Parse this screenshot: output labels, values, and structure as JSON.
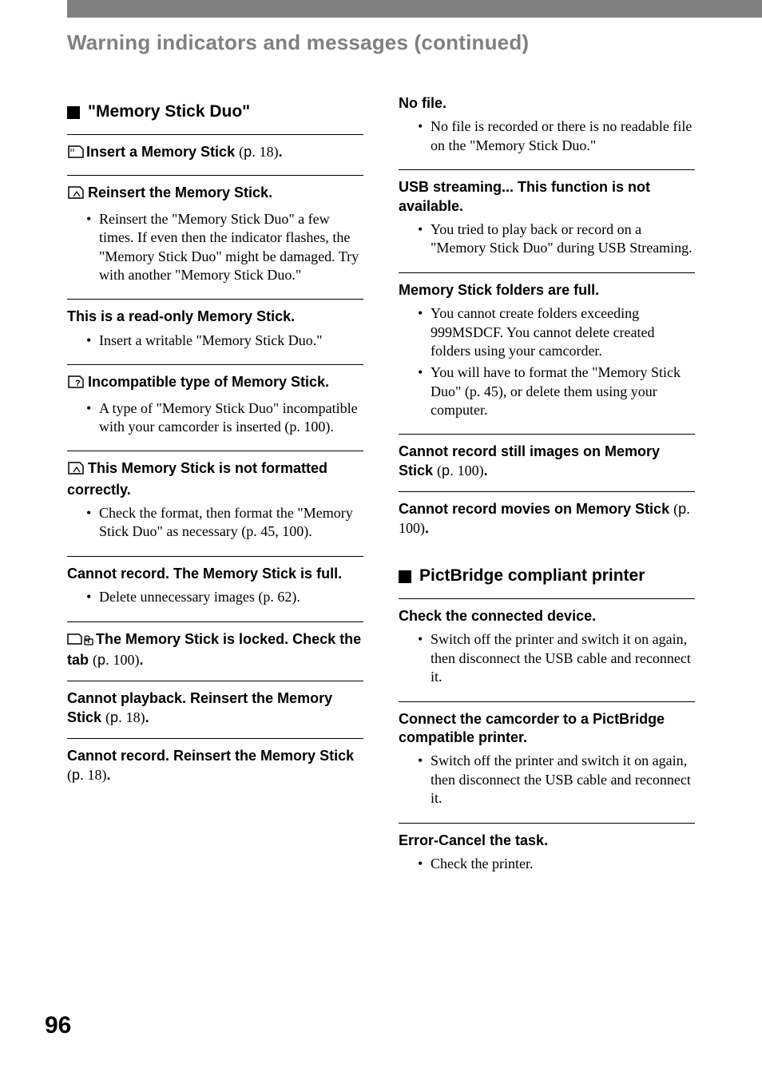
{
  "page": {
    "number": "96",
    "chapter_title": "Warning indicators and messages (continued)"
  },
  "left": {
    "section_heading": "\"Memory Stick Duo\"",
    "items": [
      {
        "icon": "memstick-outline",
        "title": "Insert a Memory Stick",
        "ref": "(p. 18)",
        "period": true,
        "bullets": []
      },
      {
        "icon": "memstick-eject",
        "title": "Reinsert the Memory Stick.",
        "bullets": [
          "Reinsert the \"Memory Stick Duo\" a few times. If even then the indicator flashes, the \"Memory Stick Duo\" might be damaged. Try with another \"Memory Stick Duo.\""
        ]
      },
      {
        "title": "This is a read-only Memory Stick.",
        "bullets": [
          "Insert a writable \"Memory Stick Duo.\""
        ]
      },
      {
        "icon": "memstick-question",
        "title": "Incompatible type of Memory Stick.",
        "bullets": [
          "A type of \"Memory Stick Duo\" incompatible with your camcorder is inserted (p. 100)."
        ]
      },
      {
        "icon": "memstick-eject",
        "title": "This Memory Stick is not formatted correctly.",
        "bullets": [
          "Check the format, then format the \"Memory Stick Duo\" as necessary (p. 45, 100)."
        ]
      },
      {
        "title": "Cannot record. The Memory Stick is full.",
        "bullets": [
          "Delete unnecessary images (p. 62)."
        ]
      },
      {
        "icon": "memstick-lock",
        "title": "The Memory Stick is locked. Check the tab",
        "ref": "(p. 100)",
        "period": true,
        "bullets": []
      },
      {
        "title": "Cannot playback. Reinsert the Memory Stick",
        "ref": "(p. 18)",
        "period": true,
        "bullets": []
      },
      {
        "title": "Cannot record. Reinsert the Memory Stick",
        "ref": "(p. 18)",
        "period": true,
        "bullets": []
      }
    ]
  },
  "right": {
    "items_a": [
      {
        "title": "No file.",
        "bullets": [
          "No file is recorded or there is no readable file on the \"Memory Stick Duo.\""
        ]
      },
      {
        "title": "USB streaming... This function is not available.",
        "bullets": [
          "You tried to play back or record on a \"Memory Stick Duo\" during USB Streaming."
        ]
      },
      {
        "title": "Memory Stick folders are full.",
        "bullets": [
          "You cannot create folders exceeding 999MSDCF. You cannot delete created folders using your camcorder.",
          "You will have to format the \"Memory Stick Duo\" (p. 45), or delete them using your computer."
        ]
      },
      {
        "title": "Cannot record still images on Memory Stick",
        "ref": "(p. 100)",
        "period": true,
        "bullets": []
      },
      {
        "title": "Cannot record movies on Memory Stick",
        "ref": "(p. 100)",
        "period": true,
        "bullets": []
      }
    ],
    "section_heading": "PictBridge compliant printer",
    "items_b": [
      {
        "title": "Check the connected device.",
        "bullets": [
          "Switch off the printer and switch it on again, then disconnect the USB cable and reconnect it."
        ]
      },
      {
        "title": "Connect the camcorder to a PictBridge compatible printer.",
        "bullets": [
          "Switch off the printer and switch it on again, then disconnect the USB cable and reconnect it."
        ]
      },
      {
        "title": "Error-Cancel the task.",
        "bullets": [
          "Check the printer."
        ]
      }
    ]
  },
  "colors": {
    "topbar": "#808080",
    "chapter_title": "#808080",
    "text": "#000000",
    "background": "#ffffff"
  }
}
